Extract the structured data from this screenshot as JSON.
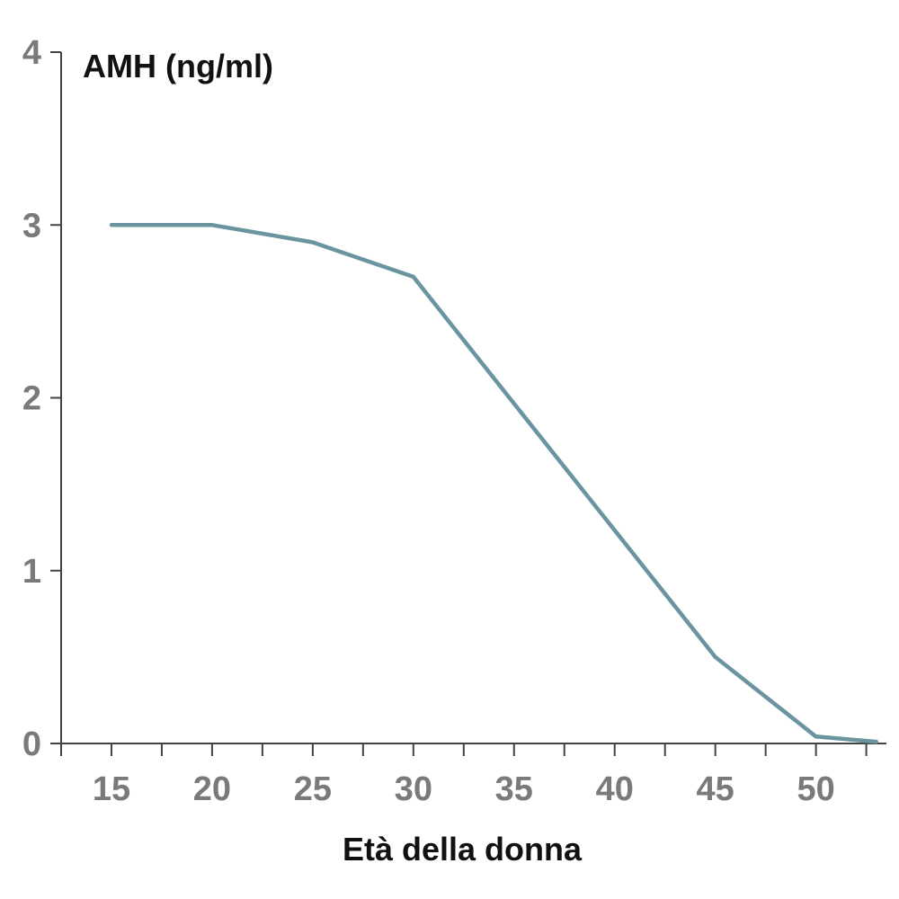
{
  "chart_data": {
    "type": "line",
    "ylabel": "AMH (ng/ml)",
    "xlabel": "Età della donna",
    "xlim": [
      12.5,
      53.5
    ],
    "ylim": [
      0,
      4
    ],
    "x_ticks": [
      15,
      20,
      25,
      30,
      35,
      40,
      45,
      50
    ],
    "x_minor_ticks": [
      12.5,
      17.5,
      22.5,
      27.5,
      32.5,
      37.5,
      42.5,
      47.5,
      52.5
    ],
    "y_ticks": [
      0,
      1,
      2,
      3,
      4
    ],
    "grid": false,
    "series": [
      {
        "color": "#6b94a1",
        "x": [
          15,
          20,
          25,
          30,
          45,
          50,
          53
        ],
        "y": [
          3.0,
          3.0,
          2.9,
          2.7,
          0.5,
          0.04,
          0.01
        ]
      }
    ]
  }
}
